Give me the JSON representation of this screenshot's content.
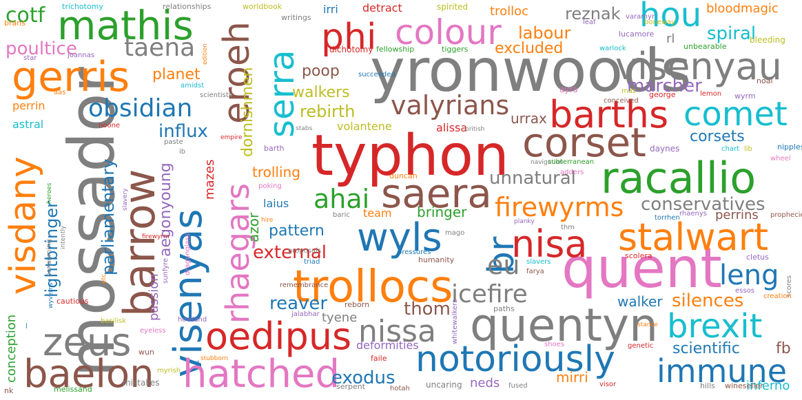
{
  "words": [
    {
      "text": "typhon",
      "color": "#d62728"
    },
    {
      "text": "yronwoods",
      "color": "#7f7f7f"
    },
    {
      "text": "mossador",
      "color": "#7f7f7f"
    },
    {
      "text": "quent",
      "color": "#e377c2"
    },
    {
      "text": "trollocs",
      "color": "#ff7f0e"
    },
    {
      "text": "quentyn",
      "color": "#7f7f7f"
    },
    {
      "text": "racallio",
      "color": "#2ca02c"
    },
    {
      "text": "visenyas",
      "color": "#1f77b4"
    },
    {
      "text": "barrow",
      "color": "#8c564b"
    },
    {
      "text": "mathis",
      "color": "#2ca02c"
    },
    {
      "text": "gerris",
      "color": "#ff7f0e"
    },
    {
      "text": "visenyau",
      "color": "#7f7f7f"
    },
    {
      "text": "corset",
      "color": "#8c564b"
    },
    {
      "text": "barths",
      "color": "#d62728"
    },
    {
      "text": "notoriously",
      "color": "#1f77b4"
    },
    {
      "text": "hatched",
      "color": "#e377c2"
    },
    {
      "text": "oedipus",
      "color": "#d62728"
    },
    {
      "text": "stalwart",
      "color": "#ff7f0e"
    },
    {
      "text": "saera",
      "color": "#8c564b"
    },
    {
      "text": "nisa",
      "color": "#d62728"
    },
    {
      "text": "wyls",
      "color": "#1f77b4"
    },
    {
      "text": "zeus",
      "color": "#7f7f7f"
    },
    {
      "text": "baelon",
      "color": "#8c564b"
    },
    {
      "text": "visdany",
      "color": "#ff7f0e"
    },
    {
      "text": "colour",
      "color": "#e377c2"
    },
    {
      "text": "phi",
      "color": "#d62728"
    },
    {
      "text": "eroeh",
      "color": "#8c564b"
    },
    {
      "text": "serra",
      "color": "#17becf"
    },
    {
      "text": "rhaegars",
      "color": "#e377c2"
    },
    {
      "text": "immune",
      "color": "#1f77b4"
    },
    {
      "text": "brexit",
      "color": "#17becf"
    },
    {
      "text": "comet",
      "color": "#17becf"
    },
    {
      "text": "hou",
      "color": "#17becf"
    },
    {
      "text": "nissa",
      "color": "#7f7f7f"
    },
    {
      "text": "br",
      "color": "#1f77b4"
    },
    {
      "text": "obsidian",
      "color": "#1f77b4"
    },
    {
      "text": "valyrians",
      "color": "#8c564b"
    },
    {
      "text": "firewyrms",
      "color": "#ff7f0e"
    },
    {
      "text": "taena",
      "color": "#7f7f7f"
    },
    {
      "text": "icefire",
      "color": "#7f7f7f"
    },
    {
      "text": "ahai",
      "color": "#2ca02c"
    },
    {
      "text": "leng",
      "color": "#1f77b4"
    },
    {
      "text": "eu",
      "color": "#7f7f7f"
    },
    {
      "text": "exodus",
      "color": "#1f77b4"
    },
    {
      "text": "unnatural",
      "color": "#7f7f7f"
    },
    {
      "text": "conservatives",
      "color": "#7f7f7f"
    },
    {
      "text": "poultice",
      "color": "#e377c2"
    },
    {
      "text": "cotf",
      "color": "#2ca02c"
    },
    {
      "text": "lightbringer",
      "color": "#1f77b4"
    },
    {
      "text": "parliamentary",
      "color": "#1f77b4"
    },
    {
      "text": "aegonyoung",
      "color": "#9467bd"
    },
    {
      "text": "dornishmen",
      "color": "#bcbd22"
    },
    {
      "text": "reznak",
      "color": "#7f7f7f"
    },
    {
      "text": "labour",
      "color": "#ff7f0e"
    },
    {
      "text": "excluded",
      "color": "#ff7f0e"
    },
    {
      "text": "spiral",
      "color": "#17becf"
    },
    {
      "text": "marcher",
      "color": "#9467bd"
    },
    {
      "text": "corsets",
      "color": "#1f77b4"
    },
    {
      "text": "silences",
      "color": "#ff7f0e"
    },
    {
      "text": "walker",
      "color": "#1f77b4"
    },
    {
      "text": "thom",
      "color": "#8c564b"
    },
    {
      "text": "reaver",
      "color": "#1f77b4"
    },
    {
      "text": "external",
      "color": "#d62728"
    },
    {
      "text": "pattern",
      "color": "#1f77b4"
    },
    {
      "text": "scientific",
      "color": "#1f77b4"
    },
    {
      "text": "planet",
      "color": "#ff7f0e"
    },
    {
      "text": "influx",
      "color": "#1f77b4"
    },
    {
      "text": "rebirth",
      "color": "#bcbd22"
    },
    {
      "text": "walkers",
      "color": "#bcbd22"
    },
    {
      "text": "poop",
      "color": "#8c564b"
    },
    {
      "text": "urrax",
      "color": "#8c564b"
    },
    {
      "text": "trolling",
      "color": "#ff7f0e"
    },
    {
      "text": "bringer",
      "color": "#2ca02c"
    },
    {
      "text": "perrins",
      "color": "#8c564b"
    },
    {
      "text": "mazes",
      "color": "#d62728"
    },
    {
      "text": "azor",
      "color": "#2ca02c"
    },
    {
      "text": "passion",
      "color": "#9467bd"
    },
    {
      "text": "conception",
      "color": "#2ca02c"
    },
    {
      "text": "mirri",
      "color": "#ff7f0e"
    },
    {
      "text": "neds",
      "color": "#9467bd"
    },
    {
      "text": "inferno",
      "color": "#17becf"
    },
    {
      "text": "fb",
      "color": "#8c564b"
    },
    {
      "text": "tyene",
      "color": "#7f7f7f"
    },
    {
      "text": "deformities",
      "color": "#9467bd"
    },
    {
      "text": "trolloc",
      "color": "#ff7f0e"
    },
    {
      "text": "detract",
      "color": "#d62728"
    },
    {
      "text": "irri",
      "color": "#1f77b4"
    },
    {
      "text": "bloodmagic",
      "color": "#ff7f0e"
    },
    {
      "text": "rl",
      "color": "#7f7f7f"
    },
    {
      "text": "perrin",
      "color": "#ff7f0e"
    },
    {
      "text": "astral",
      "color": "#17becf"
    },
    {
      "text": "volantene",
      "color": "#bcbd22"
    },
    {
      "text": "alissa",
      "color": "#d62728"
    },
    {
      "text": "laius",
      "color": "#1f77b4"
    },
    {
      "text": "team",
      "color": "#ff7f0e"
    },
    {
      "text": "daynes",
      "color": "#9467bd"
    },
    {
      "text": "trichotomy",
      "color": "#17becf"
    },
    {
      "text": "relationships",
      "color": "#7f7f7f"
    },
    {
      "text": "worldbook",
      "color": "#bcbd22"
    },
    {
      "text": "writings",
      "color": "#7f7f7f"
    },
    {
      "text": "spirited",
      "color": "#bcbd22"
    },
    {
      "text": "dichotomy",
      "color": "#d62728"
    },
    {
      "text": "fellowship",
      "color": "#2ca02c"
    },
    {
      "text": "tiggers",
      "color": "#2ca02c"
    },
    {
      "text": "warlock",
      "color": "#17becf"
    },
    {
      "text": "leaf",
      "color": "#9467bd"
    },
    {
      "text": "varamyr",
      "color": "#9467bd"
    },
    {
      "text": "lucamore",
      "color": "#9467bd"
    },
    {
      "text": "unbearable",
      "color": "#2ca02c"
    },
    {
      "text": "bleeding",
      "color": "#bcbd22"
    },
    {
      "text": "boneway",
      "color": "#bcbd22"
    },
    {
      "text": "brans",
      "color": "#ff7f0e"
    },
    {
      "text": "star",
      "color": "#9467bd"
    },
    {
      "text": "joannas",
      "color": "#9467bd"
    },
    {
      "text": "edition",
      "color": "#ff7f0e"
    },
    {
      "text": "amidst",
      "color": "#17becf"
    },
    {
      "text": "scientists",
      "color": "#7f7f7f"
    },
    {
      "text": "aas",
      "color": "#ff7f0e"
    },
    {
      "text": "succeeded",
      "color": "#1f77b4"
    },
    {
      "text": "ayra",
      "color": "#e377c2"
    },
    {
      "text": "maz",
      "color": "#bcbd22"
    },
    {
      "text": "conceived",
      "color": "#8c564b"
    },
    {
      "text": "george",
      "color": "#d62728"
    },
    {
      "text": "lemon",
      "color": "#d62728"
    },
    {
      "text": "wyrm",
      "color": "#9467bd"
    },
    {
      "text": "noal",
      "color": "#8c564b"
    },
    {
      "text": "noone",
      "color": "#d62728"
    },
    {
      "text": "stabs",
      "color": "#7f7f7f"
    },
    {
      "text": "british",
      "color": "#7f7f7f"
    },
    {
      "text": "paste",
      "color": "#7f7f7f"
    },
    {
      "text": "ib",
      "color": "#7f7f7f"
    },
    {
      "text": "empire",
      "color": "#d62728"
    },
    {
      "text": "barth",
      "color": "#9467bd"
    },
    {
      "text": "chart",
      "color": "#17becf"
    },
    {
      "text": "lib",
      "color": "#bcbd22"
    },
    {
      "text": "nipples",
      "color": "#1f77b4"
    },
    {
      "text": "wheel",
      "color": "#e377c2"
    },
    {
      "text": "navigation",
      "color": "#7f7f7f"
    },
    {
      "text": "subterranean",
      "color": "#2ca02c"
    },
    {
      "text": "duncan",
      "color": "#ff7f0e"
    },
    {
      "text": "adders",
      "color": "#e377c2"
    },
    {
      "text": "poking",
      "color": "#e377c2"
    },
    {
      "text": "hire",
      "color": "#ff7f0e"
    },
    {
      "text": "baric",
      "color": "#7f7f7f"
    },
    {
      "text": "torrhen",
      "color": "#1f77b4"
    },
    {
      "text": "rhaenys",
      "color": "#9467bd"
    },
    {
      "text": "prophecies",
      "color": "#8c564b"
    },
    {
      "text": "thm",
      "color": "#7f7f7f"
    },
    {
      "text": "planky",
      "color": "#9467bd"
    },
    {
      "text": "mago",
      "color": "#7f7f7f"
    },
    {
      "text": "pressures",
      "color": "#1f77b4"
    },
    {
      "text": "humanity",
      "color": "#8c564b"
    },
    {
      "text": "scolera",
      "color": "#d62728"
    },
    {
      "text": "cletus",
      "color": "#9467bd"
    },
    {
      "text": "slavers",
      "color": "#17becf"
    },
    {
      "text": "farya",
      "color": "#8c564b"
    },
    {
      "text": "proposals",
      "color": "#7f7f7f"
    },
    {
      "text": "triad",
      "color": "#1f77b4"
    },
    {
      "text": "remembrance",
      "color": "#8c564b"
    },
    {
      "text": "essos",
      "color": "#9467bd"
    },
    {
      "text": "scores",
      "color": "#7f7f7f"
    },
    {
      "text": "creation",
      "color": "#ff7f0e"
    },
    {
      "text": "reborn",
      "color": "#8c564b"
    },
    {
      "text": "jalabhar",
      "color": "#9467bd"
    },
    {
      "text": "whitewalkers",
      "color": "#9467bd"
    },
    {
      "text": "paths",
      "color": "#7f7f7f"
    },
    {
      "text": "stance",
      "color": "#ff7f0e"
    },
    {
      "text": "genetic",
      "color": "#d62728"
    },
    {
      "text": "shoes",
      "color": "#e377c2"
    },
    {
      "text": "howland",
      "color": "#9467bd"
    },
    {
      "text": "faile",
      "color": "#d62728"
    },
    {
      "text": "stubborn",
      "color": "#ff7f0e"
    },
    {
      "text": "serpent",
      "color": "#7f7f7f"
    },
    {
      "text": "hotah",
      "color": "#8c564b"
    },
    {
      "text": "uncaring",
      "color": "#7f7f7f"
    },
    {
      "text": "fused",
      "color": "#7f7f7f"
    },
    {
      "text": "visor",
      "color": "#d62728"
    },
    {
      "text": "hills",
      "color": "#7f7f7f"
    },
    {
      "text": "wineseller",
      "color": "#8c564b"
    },
    {
      "text": "mistakes",
      "color": "#7f7f7f"
    },
    {
      "text": "melissand",
      "color": "#2ca02c"
    },
    {
      "text": "nk",
      "color": "#8c564b"
    },
    {
      "text": "myrish",
      "color": "#bcbd22"
    },
    {
      "text": "wun",
      "color": "#8c564b"
    },
    {
      "text": "eyeless",
      "color": "#e377c2"
    },
    {
      "text": "basilisk",
      "color": "#bcbd22"
    },
    {
      "text": "cautious",
      "color": "#d62728"
    },
    {
      "text": "wyverns",
      "color": "#1f77b4"
    },
    {
      "text": "consuming",
      "color": "#7f7f7f"
    },
    {
      "text": "intently",
      "color": "#7f7f7f"
    },
    {
      "text": "heroes",
      "color": "#2ca02c"
    },
    {
      "text": "slavery",
      "color": "#9467bd"
    },
    {
      "text": "etc",
      "color": "#ff7f0e"
    },
    {
      "text": "firewyrm",
      "color": "#d62728"
    },
    {
      "text": "sunfyre",
      "color": "#9467bd"
    },
    {
      "text": "dragonglass",
      "color": "#e377c2"
    },
    {
      "text": "s",
      "color": "#1f77b4"
    },
    {
      "text": "l",
      "color": "#1f77b4"
    }
  ]
}
